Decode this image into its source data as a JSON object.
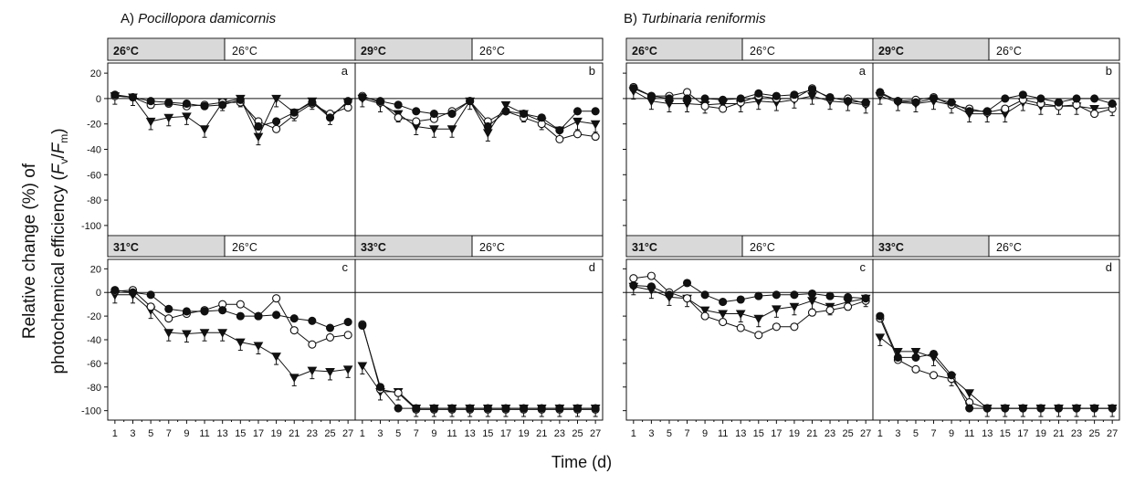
{
  "panels_group": [
    {
      "label": "A)",
      "species": "Pocillopora damicornis"
    },
    {
      "label": "B)",
      "species": "Turbinaria reniformis"
    }
  ],
  "y_axis_label": {
    "line1": "Relative change (%) of",
    "line2": "photochemical efficiency (",
    "fv": "F",
    "fv_sub": "v",
    "slash": "/",
    "fm": "F",
    "fm_sub": "m",
    "close": ")"
  },
  "x_axis_label": "Time (d)",
  "colors": {
    "ink": "#111111",
    "shade": "#d9d9d9",
    "open": "#ffffff"
  },
  "chart_data": {
    "type": "line",
    "x_ticks": [
      "1",
      "3",
      "5",
      "7",
      "9",
      "11",
      "13",
      "15",
      "17",
      "19",
      "21",
      "23",
      "25",
      "27"
    ],
    "x_ticks_ocr_A_row1": [
      "1",
      "3",
      "5",
      "7",
      "9",
      "1'",
      "13",
      "15",
      "17",
      "19",
      "21",
      "23",
      "25",
      "27"
    ],
    "y_ticks": [
      "20",
      "0",
      "-20",
      "-40",
      "-60",
      "-80",
      "-100"
    ],
    "ylim": [
      -108,
      28
    ],
    "xlim": [
      0.2,
      27.8
    ],
    "markers": {
      "s1": "filled-circle",
      "s2": "open-circle",
      "s3": "filled-triangle-down"
    },
    "panels": [
      {
        "group": 0,
        "row": 0,
        "col": 0,
        "letter": "a",
        "heat_temp": "26°C",
        "recovery_temp": "26°C",
        "s1": [
          3,
          1,
          -2,
          -3,
          -4,
          -6,
          -5,
          -1,
          -22,
          -18,
          -11,
          -3,
          -15,
          -2
        ],
        "s2": [
          2,
          1,
          -5,
          -4,
          -6,
          -5,
          -3,
          -3,
          -18,
          -24,
          -13,
          -4,
          -12,
          -7
        ],
        "s3": [
          2,
          1,
          -18,
          -15,
          -14,
          -24,
          -3,
          0,
          -30,
          0,
          -11,
          -2,
          -14,
          -3
        ]
      },
      {
        "group": 0,
        "row": 0,
        "col": 1,
        "letter": "b",
        "heat_temp": "29°C",
        "recovery_temp": "26°C",
        "s1": [
          1,
          -2,
          -5,
          -10,
          -12,
          -12,
          -2,
          -22,
          -10,
          -12,
          -15,
          -25,
          -10,
          -10
        ],
        "s2": [
          2,
          -3,
          -15,
          -18,
          -16,
          -10,
          -2,
          -18,
          -10,
          -15,
          -20,
          -32,
          -28,
          -30
        ],
        "s3": [
          0,
          -4,
          -12,
          -22,
          -24,
          -24,
          -2,
          -27,
          -5,
          -12,
          -18,
          -25,
          -18,
          -20
        ]
      },
      {
        "group": 0,
        "row": 1,
        "col": 0,
        "letter": "c",
        "heat_temp": "31°C",
        "recovery_temp": "26°C",
        "s1": [
          2,
          0,
          -2,
          -14,
          -16,
          -16,
          -15,
          -20,
          -20,
          -19,
          -22,
          -24,
          -30,
          -25
        ],
        "s2": [
          1,
          2,
          -12,
          -22,
          -18,
          -15,
          -10,
          -10,
          -20,
          -5,
          -32,
          -44,
          -38,
          -36
        ],
        "s3": [
          -2,
          -2,
          -15,
          -34,
          -35,
          -34,
          -34,
          -42,
          -45,
          -54,
          -72,
          -66,
          -67,
          -65
        ]
      },
      {
        "group": 0,
        "row": 1,
        "col": 1,
        "letter": "d",
        "heat_temp": "33°C",
        "recovery_temp": "26°C",
        "s1": [
          -28,
          -80,
          -98,
          -98,
          -98,
          -98,
          -98,
          -98,
          -98,
          -98,
          -98,
          -98,
          -98,
          -98
        ],
        "s2": [
          -27,
          -82,
          -85,
          -99,
          -99,
          -99,
          -99,
          -99,
          -99,
          -99,
          -99,
          -99,
          -99,
          -99
        ],
        "s3": [
          -62,
          -84,
          -84,
          -98,
          -98,
          -98,
          -98,
          -98,
          -98,
          -98,
          -98,
          -98,
          -98,
          -98
        ]
      },
      {
        "group": 1,
        "row": 0,
        "col": 0,
        "letter": "a",
        "heat_temp": "26°C",
        "recovery_temp": "26°C",
        "s1": [
          8,
          2,
          0,
          0,
          0,
          -1,
          0,
          4,
          2,
          3,
          7,
          1,
          -2,
          -3
        ],
        "s2": [
          9,
          2,
          2,
          5,
          -6,
          -8,
          -3,
          2,
          0,
          0,
          8,
          0,
          0,
          -4
        ],
        "s3": [
          6,
          -2,
          -4,
          -4,
          -5,
          -4,
          -4,
          -2,
          -3,
          -1,
          2,
          -2,
          -3,
          -5
        ]
      },
      {
        "group": 1,
        "row": 0,
        "col": 1,
        "letter": "b",
        "heat_temp": "29°C",
        "recovery_temp": "26°C",
        "s1": [
          5,
          -2,
          -3,
          0,
          -3,
          -10,
          -10,
          0,
          3,
          0,
          -3,
          0,
          0,
          -4
        ],
        "s2": [
          4,
          -2,
          -1,
          1,
          -5,
          -8,
          -11,
          -8,
          -1,
          -4,
          -6,
          -5,
          -12,
          -8
        ],
        "s3": [
          2,
          -3,
          -4,
          -2,
          -5,
          -12,
          -12,
          -12,
          -3,
          -6,
          -6,
          -6,
          -8,
          -7
        ]
      },
      {
        "group": 1,
        "row": 1,
        "col": 0,
        "letter": "c",
        "heat_temp": "31°C",
        "recovery_temp": "26°C",
        "s1": [
          6,
          5,
          -2,
          8,
          -2,
          -8,
          -6,
          -3,
          -2,
          -2,
          -1,
          -3,
          -4,
          -5
        ],
        "s2": [
          12,
          14,
          0,
          -5,
          -20,
          -25,
          -30,
          -36,
          -29,
          -29,
          -17,
          -15,
          -12,
          -7
        ],
        "s3": [
          5,
          2,
          -4,
          -5,
          -15,
          -18,
          -18,
          -22,
          -14,
          -12,
          -7,
          -12,
          -8,
          -5
        ]
      },
      {
        "group": 1,
        "row": 1,
        "col": 1,
        "letter": "d",
        "heat_temp": "33°C",
        "recovery_temp": "26°C",
        "s1": [
          -20,
          -55,
          -55,
          -52,
          -70,
          -98,
          -98,
          -98,
          -98,
          -98,
          -98,
          -98,
          -98,
          -98
        ],
        "s2": [
          -22,
          -57,
          -65,
          -70,
          -73,
          -93,
          -98,
          -98,
          -98,
          -98,
          -98,
          -98,
          -98,
          -98
        ],
        "s3": [
          -38,
          -50,
          -50,
          -55,
          -72,
          -85,
          -98,
          -98,
          -98,
          -98,
          -98,
          -98,
          -98,
          -98
        ]
      }
    ]
  }
}
